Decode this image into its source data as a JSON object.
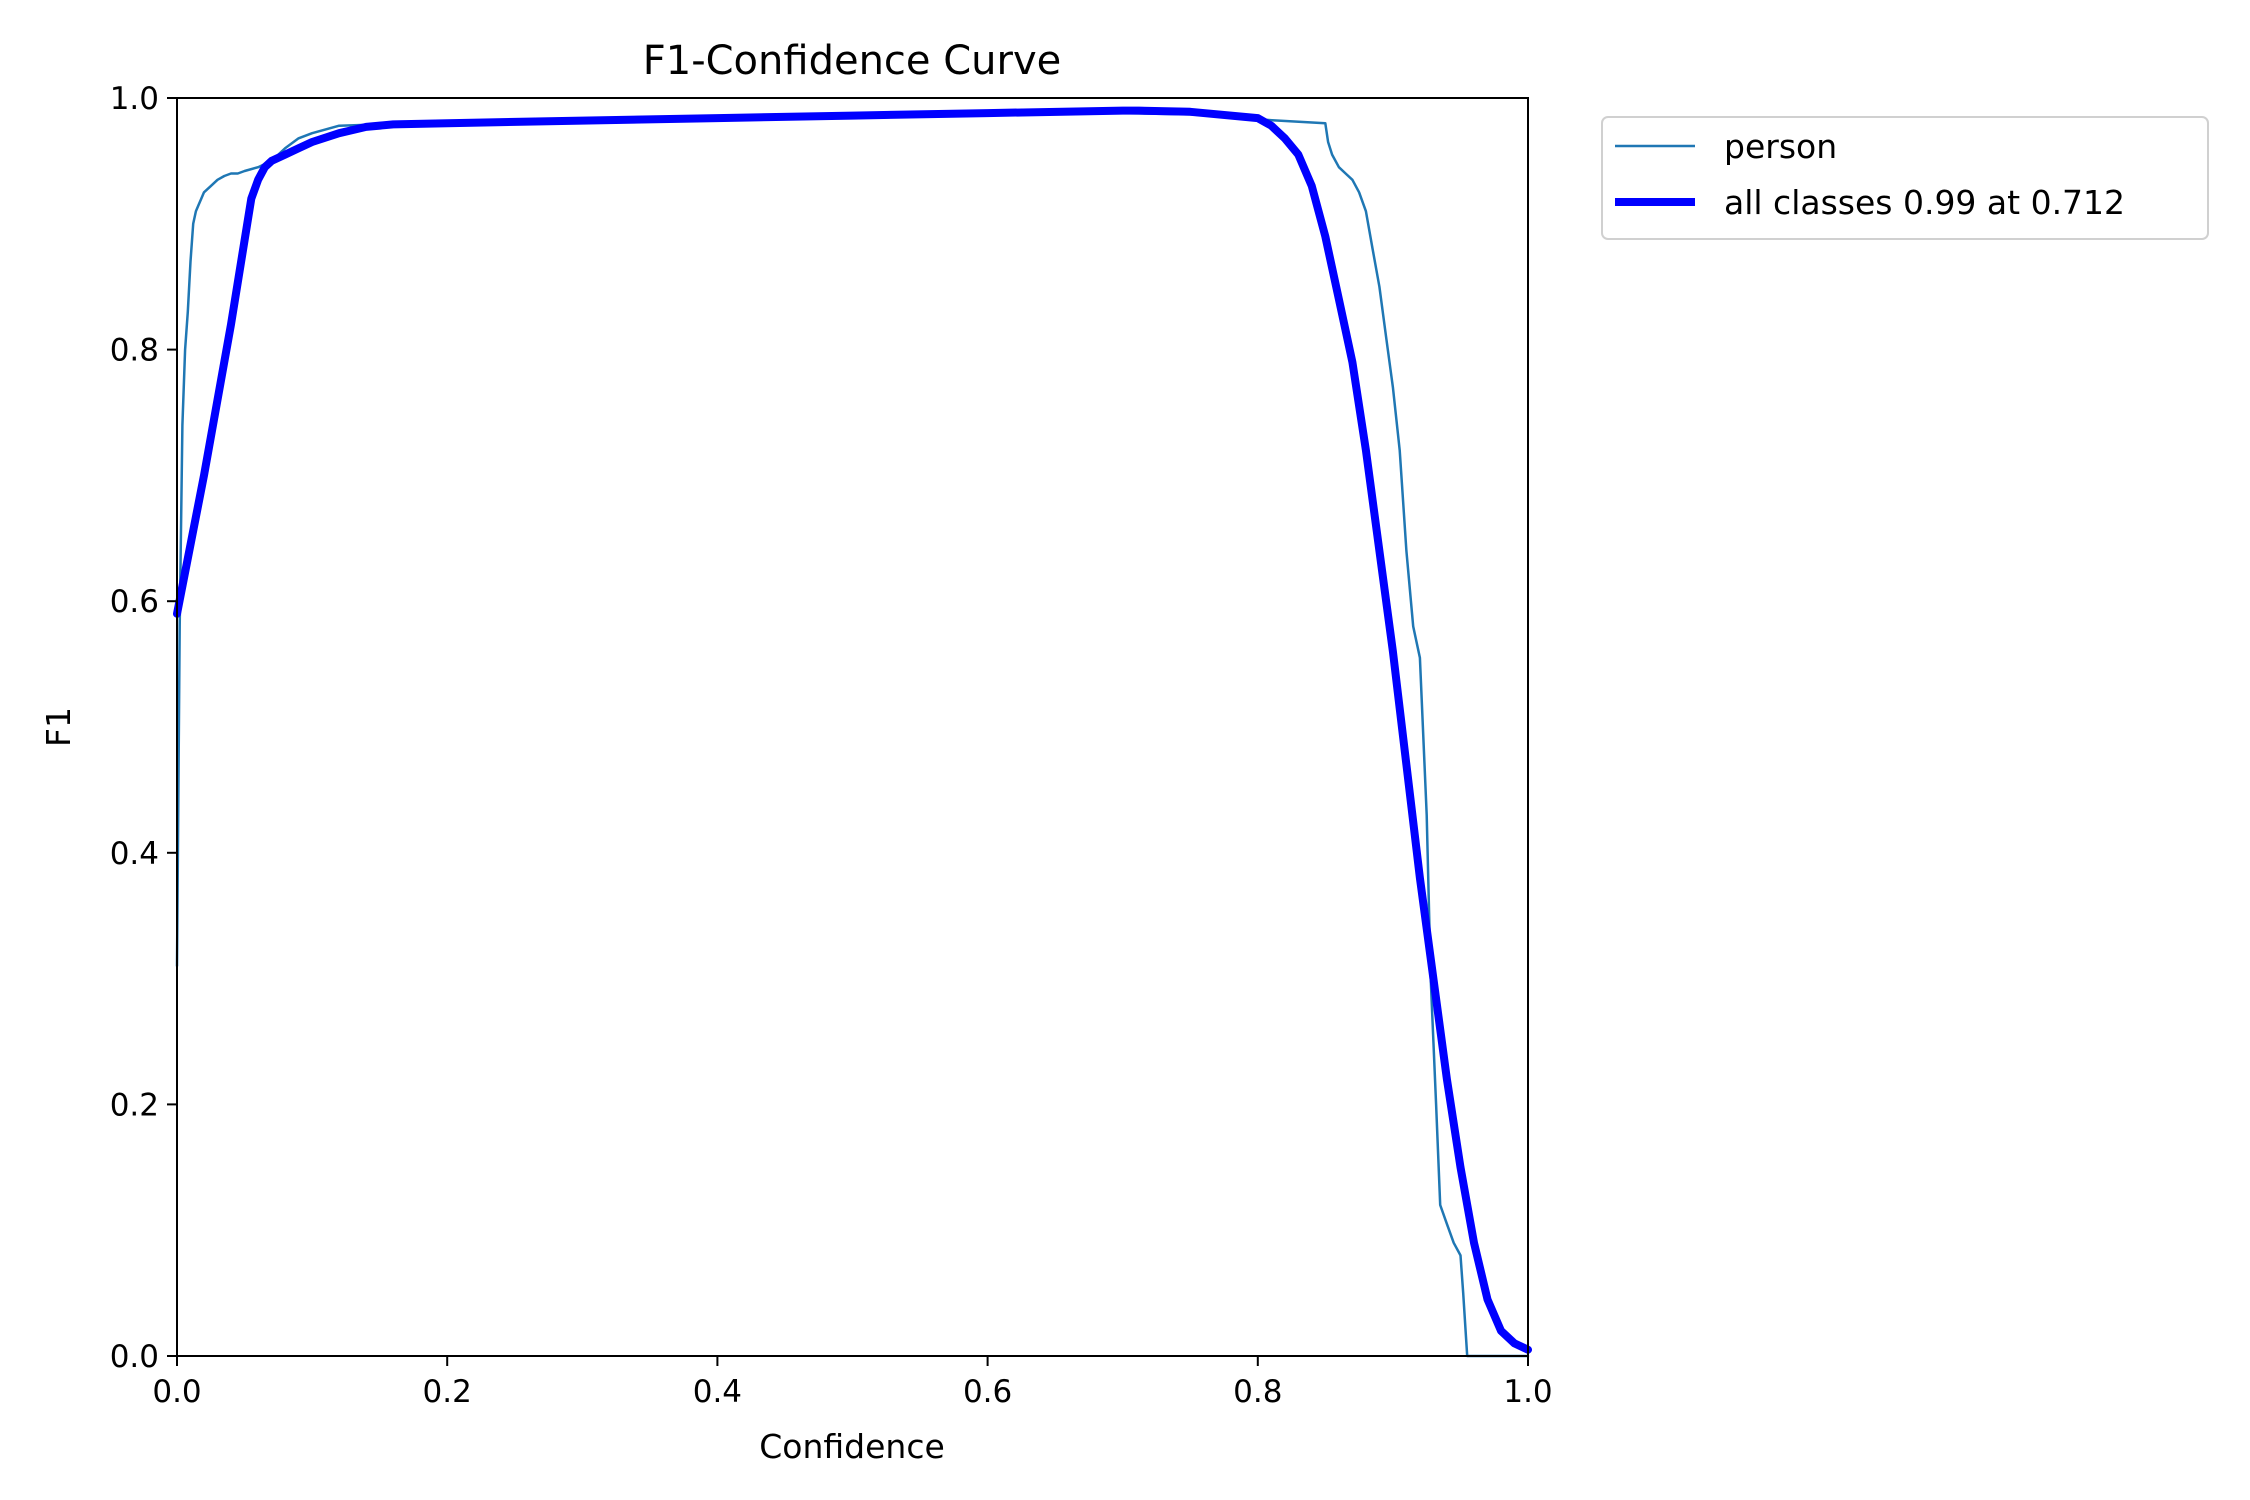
{
  "chart_data": {
    "type": "line",
    "title": "F1-Confidence Curve",
    "xlabel": "Confidence",
    "ylabel": "F1",
    "xlim": [
      0.0,
      1.0
    ],
    "ylim": [
      0.0,
      1.0
    ],
    "xticks": [
      "0.0",
      "0.2",
      "0.4",
      "0.6",
      "0.8",
      "1.0"
    ],
    "yticks": [
      "0.0",
      "0.2",
      "0.4",
      "0.6",
      "0.8",
      "1.0"
    ],
    "grid": false,
    "legend_position": "outside-upper-right",
    "series": [
      {
        "name": "person",
        "color": "#1f77b4",
        "x": [
          0.0,
          0.002,
          0.004,
          0.006,
          0.008,
          0.01,
          0.012,
          0.014,
          0.016,
          0.018,
          0.02,
          0.025,
          0.03,
          0.035,
          0.04,
          0.045,
          0.05,
          0.06,
          0.07,
          0.08,
          0.09,
          0.1,
          0.12,
          0.15,
          0.2,
          0.3,
          0.4,
          0.5,
          0.6,
          0.7,
          0.75,
          0.8,
          0.85,
          0.852,
          0.855,
          0.86,
          0.865,
          0.87,
          0.875,
          0.88,
          0.885,
          0.89,
          0.895,
          0.9,
          0.905,
          0.91,
          0.915,
          0.92,
          0.925,
          0.928,
          0.93,
          0.932,
          0.935,
          0.94,
          0.945,
          0.95,
          0.952,
          0.955,
          0.96,
          0.97,
          0.98,
          0.99,
          1.0
        ],
        "y": [
          0.31,
          0.58,
          0.74,
          0.8,
          0.83,
          0.87,
          0.9,
          0.91,
          0.915,
          0.92,
          0.925,
          0.93,
          0.935,
          0.938,
          0.94,
          0.94,
          0.942,
          0.945,
          0.95,
          0.96,
          0.968,
          0.972,
          0.978,
          0.979,
          0.98,
          0.982,
          0.984,
          0.986,
          0.987,
          0.988,
          0.987,
          0.983,
          0.98,
          0.965,
          0.955,
          0.945,
          0.94,
          0.935,
          0.925,
          0.91,
          0.88,
          0.85,
          0.81,
          0.77,
          0.72,
          0.64,
          0.58,
          0.555,
          0.43,
          0.3,
          0.25,
          0.2,
          0.12,
          0.105,
          0.09,
          0.08,
          0.05,
          0.0,
          0.0,
          0.0,
          0.0,
          0.0,
          0.0
        ]
      },
      {
        "name": "all classes 0.99 at 0.712",
        "color": "#0000ff",
        "x": [
          0.0,
          0.02,
          0.04,
          0.055,
          0.06,
          0.065,
          0.07,
          0.08,
          0.09,
          0.1,
          0.12,
          0.14,
          0.16,
          0.2,
          0.3,
          0.4,
          0.5,
          0.6,
          0.7,
          0.712,
          0.75,
          0.8,
          0.81,
          0.82,
          0.83,
          0.84,
          0.85,
          0.86,
          0.87,
          0.88,
          0.89,
          0.9,
          0.91,
          0.92,
          0.93,
          0.94,
          0.95,
          0.96,
          0.97,
          0.98,
          0.99,
          1.0
        ],
        "y": [
          0.59,
          0.7,
          0.82,
          0.92,
          0.935,
          0.945,
          0.95,
          0.955,
          0.96,
          0.965,
          0.972,
          0.977,
          0.979,
          0.98,
          0.982,
          0.984,
          0.986,
          0.988,
          0.99,
          0.99,
          0.989,
          0.984,
          0.978,
          0.968,
          0.955,
          0.93,
          0.89,
          0.84,
          0.79,
          0.72,
          0.64,
          0.56,
          0.47,
          0.38,
          0.3,
          0.22,
          0.15,
          0.09,
          0.045,
          0.02,
          0.01,
          0.005
        ]
      }
    ]
  }
}
